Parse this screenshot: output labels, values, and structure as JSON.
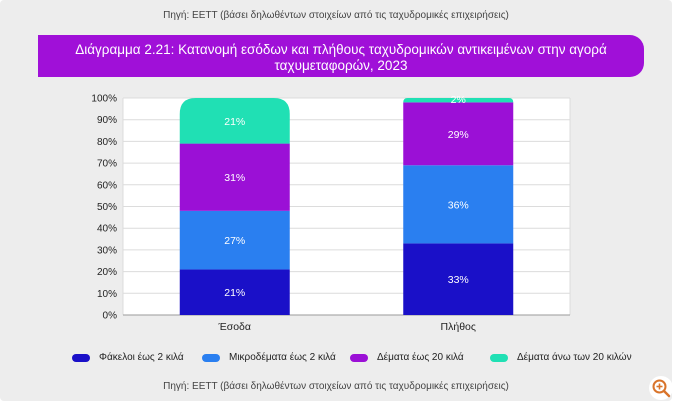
{
  "header": {
    "source": "Πηγή: ΕΕΤΤ (βάσει δηλωθέντων στοιχείων από τις ταχυδρομικές επιχειρήσεις)"
  },
  "title": {
    "line1": "Διάγραμμα 2.21: Κατανομή εσόδων και πλήθους ταχυδρομικών αντικειμένων στην αγορά",
    "line2": "ταχυμεταφορών, 2023"
  },
  "footer": {
    "source": "Πηγή: ΕΕΤΤ (βάσει δηλωθέντων στοιχείων από τις ταχυδρομικές επιχειρήσεις)"
  },
  "colors": {
    "title_bg": "#a010d8",
    "s1": "#1a10c8",
    "s2": "#2a7ff0",
    "s3": "#9b10d6",
    "s4": "#20e0b4"
  },
  "chart_data": {
    "type": "bar",
    "stacked": true,
    "categories": [
      "Έσοδα",
      "Πλήθος"
    ],
    "series": [
      {
        "name": "Φάκελοι έως 2 κιλά",
        "values": [
          21,
          33
        ],
        "labels": [
          "21%",
          "33%"
        ],
        "color": "#1a10c8"
      },
      {
        "name": "Μικροδέματα έως 2 κιλά",
        "values": [
          27,
          36
        ],
        "labels": [
          "27%",
          "36%"
        ],
        "color": "#2a7ff0"
      },
      {
        "name": "Δέματα έως 20 κιλά",
        "values": [
          31,
          29
        ],
        "labels": [
          "31%",
          "29%"
        ],
        "color": "#9b10d6"
      },
      {
        "name": "Δέματα άνω των 20 κιλών",
        "values": [
          21,
          2
        ],
        "labels": [
          "21%",
          "2%"
        ],
        "color": "#20e0b4"
      }
    ],
    "ylim": [
      0,
      100
    ],
    "yticks": [
      "0%",
      "10%",
      "20%",
      "30%",
      "40%",
      "50%",
      "60%",
      "70%",
      "80%",
      "90%",
      "100%"
    ],
    "grid": true,
    "legend": "bottom"
  },
  "icons": {
    "zoom": "zoom-in-icon"
  }
}
